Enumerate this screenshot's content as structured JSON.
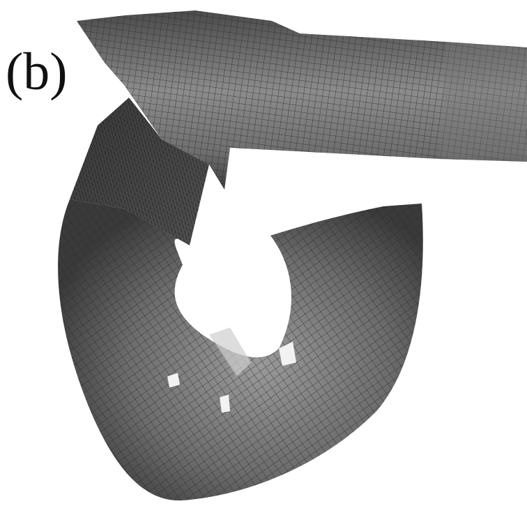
{
  "label": "(b)"
}
